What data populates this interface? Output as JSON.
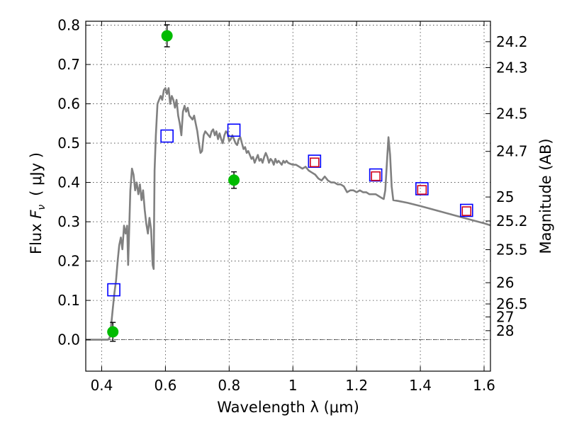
{
  "chart_data": {
    "type": "line",
    "xlabel": "Wavelength  λ (μm)",
    "ylabel": "Flux  Fν  ( μJy )",
    "ylabel_parts": {
      "pre": "Flux ",
      "var": "F",
      "sub": "ν",
      "unit": "( μJy )"
    },
    "y2label": "Magnitude (AB)",
    "xlim": [
      0.35,
      1.62
    ],
    "ylim": [
      -0.08,
      0.81
    ],
    "grid": true,
    "xticks": [
      {
        "value": 0.4,
        "label": "0.4"
      },
      {
        "value": 0.6,
        "label": "0.6"
      },
      {
        "value": 0.8,
        "label": "0.8"
      },
      {
        "value": 1.0,
        "label": "1"
      },
      {
        "value": 1.2,
        "label": "1.2"
      },
      {
        "value": 1.4,
        "label": "1.4"
      },
      {
        "value": 1.6,
        "label": "1.6"
      }
    ],
    "yticks": [
      {
        "value": 0.0,
        "label": "0.0"
      },
      {
        "value": 0.1,
        "label": "0.1"
      },
      {
        "value": 0.2,
        "label": "0.2"
      },
      {
        "value": 0.3,
        "label": "0.3"
      },
      {
        "value": 0.4,
        "label": "0.4"
      },
      {
        "value": 0.5,
        "label": "0.5"
      },
      {
        "value": 0.6,
        "label": "0.6"
      },
      {
        "value": 0.7,
        "label": "0.7"
      },
      {
        "value": 0.8,
        "label": "0.8"
      }
    ],
    "y2ticks": [
      {
        "label": "24.2",
        "flux": 0.758
      },
      {
        "label": "24.3",
        "flux": 0.692
      },
      {
        "label": "24.5",
        "flux": 0.575
      },
      {
        "label": "24.7",
        "flux": 0.479
      },
      {
        "label": "25",
        "flux": 0.363
      },
      {
        "label": "25.2",
        "flux": 0.302
      },
      {
        "label": "25.5",
        "flux": 0.229
      },
      {
        "label": "26",
        "flux": 0.145
      },
      {
        "label": "26.5",
        "flux": 0.091
      },
      {
        "label": "27",
        "flux": 0.058
      },
      {
        "label": "28",
        "flux": 0.023
      }
    ],
    "model_spectrum": {
      "color": "#808080",
      "points": [
        [
          0.35,
          0.0
        ],
        [
          0.42,
          0.0
        ],
        [
          0.425,
          0.005
        ],
        [
          0.43,
          0.04
        ],
        [
          0.435,
          0.08
        ],
        [
          0.44,
          0.12
        ],
        [
          0.445,
          0.15
        ],
        [
          0.45,
          0.2
        ],
        [
          0.455,
          0.24
        ],
        [
          0.46,
          0.26
        ],
        [
          0.465,
          0.23
        ],
        [
          0.47,
          0.29
        ],
        [
          0.475,
          0.27
        ],
        [
          0.48,
          0.29
        ],
        [
          0.483,
          0.19
        ],
        [
          0.487,
          0.3
        ],
        [
          0.49,
          0.38
        ],
        [
          0.495,
          0.435
        ],
        [
          0.5,
          0.42
        ],
        [
          0.505,
          0.38
        ],
        [
          0.51,
          0.4
        ],
        [
          0.515,
          0.37
        ],
        [
          0.52,
          0.395
        ],
        [
          0.525,
          0.355
        ],
        [
          0.53,
          0.38
        ],
        [
          0.535,
          0.33
        ],
        [
          0.54,
          0.295
        ],
        [
          0.545,
          0.27
        ],
        [
          0.55,
          0.31
        ],
        [
          0.555,
          0.28
        ],
        [
          0.56,
          0.19
        ],
        [
          0.563,
          0.18
        ],
        [
          0.566,
          0.43
        ],
        [
          0.57,
          0.52
        ],
        [
          0.575,
          0.6
        ],
        [
          0.58,
          0.61
        ],
        [
          0.585,
          0.62
        ],
        [
          0.59,
          0.61
        ],
        [
          0.595,
          0.635
        ],
        [
          0.6,
          0.64
        ],
        [
          0.605,
          0.625
        ],
        [
          0.61,
          0.64
        ],
        [
          0.615,
          0.6
        ],
        [
          0.62,
          0.62
        ],
        [
          0.625,
          0.61
        ],
        [
          0.63,
          0.59
        ],
        [
          0.635,
          0.61
        ],
        [
          0.64,
          0.57
        ],
        [
          0.645,
          0.55
        ],
        [
          0.65,
          0.52
        ],
        [
          0.655,
          0.58
        ],
        [
          0.66,
          0.595
        ],
        [
          0.665,
          0.58
        ],
        [
          0.67,
          0.59
        ],
        [
          0.675,
          0.57
        ],
        [
          0.68,
          0.565
        ],
        [
          0.685,
          0.56
        ],
        [
          0.69,
          0.57
        ],
        [
          0.695,
          0.55
        ],
        [
          0.7,
          0.53
        ],
        [
          0.705,
          0.5
        ],
        [
          0.71,
          0.475
        ],
        [
          0.715,
          0.48
        ],
        [
          0.72,
          0.52
        ],
        [
          0.725,
          0.53
        ],
        [
          0.73,
          0.525
        ],
        [
          0.735,
          0.52
        ],
        [
          0.74,
          0.515
        ],
        [
          0.745,
          0.53
        ],
        [
          0.75,
          0.535
        ],
        [
          0.755,
          0.52
        ],
        [
          0.76,
          0.53
        ],
        [
          0.765,
          0.51
        ],
        [
          0.77,
          0.525
        ],
        [
          0.775,
          0.51
        ],
        [
          0.78,
          0.5
        ],
        [
          0.785,
          0.52
        ],
        [
          0.79,
          0.53
        ],
        [
          0.795,
          0.525
        ],
        [
          0.8,
          0.505
        ],
        [
          0.805,
          0.51
        ],
        [
          0.81,
          0.52
        ],
        [
          0.815,
          0.51
        ],
        [
          0.82,
          0.5
        ],
        [
          0.825,
          0.495
        ],
        [
          0.83,
          0.51
        ],
        [
          0.835,
          0.515
        ],
        [
          0.84,
          0.5
        ],
        [
          0.845,
          0.485
        ],
        [
          0.85,
          0.49
        ],
        [
          0.855,
          0.475
        ],
        [
          0.86,
          0.48
        ],
        [
          0.865,
          0.47
        ],
        [
          0.87,
          0.46
        ],
        [
          0.875,
          0.465
        ],
        [
          0.88,
          0.45
        ],
        [
          0.885,
          0.46
        ],
        [
          0.89,
          0.47
        ],
        [
          0.895,
          0.455
        ],
        [
          0.9,
          0.46
        ],
        [
          0.905,
          0.45
        ],
        [
          0.91,
          0.465
        ],
        [
          0.915,
          0.475
        ],
        [
          0.92,
          0.465
        ],
        [
          0.925,
          0.45
        ],
        [
          0.93,
          0.46
        ],
        [
          0.935,
          0.455
        ],
        [
          0.94,
          0.445
        ],
        [
          0.945,
          0.46
        ],
        [
          0.95,
          0.45
        ],
        [
          0.955,
          0.455
        ],
        [
          0.96,
          0.45
        ],
        [
          0.965,
          0.445
        ],
        [
          0.97,
          0.455
        ],
        [
          0.975,
          0.45
        ],
        [
          0.98,
          0.455
        ],
        [
          0.985,
          0.45
        ],
        [
          0.99,
          0.448
        ],
        [
          1.0,
          0.445
        ],
        [
          1.01,
          0.445
        ],
        [
          1.02,
          0.44
        ],
        [
          1.03,
          0.435
        ],
        [
          1.04,
          0.44
        ],
        [
          1.05,
          0.43
        ],
        [
          1.06,
          0.425
        ],
        [
          1.07,
          0.42
        ],
        [
          1.08,
          0.41
        ],
        [
          1.09,
          0.405
        ],
        [
          1.1,
          0.415
        ],
        [
          1.11,
          0.405
        ],
        [
          1.12,
          0.4
        ],
        [
          1.13,
          0.4
        ],
        [
          1.14,
          0.395
        ],
        [
          1.15,
          0.395
        ],
        [
          1.16,
          0.39
        ],
        [
          1.17,
          0.375
        ],
        [
          1.18,
          0.38
        ],
        [
          1.19,
          0.38
        ],
        [
          1.2,
          0.375
        ],
        [
          1.21,
          0.38
        ],
        [
          1.22,
          0.375
        ],
        [
          1.23,
          0.375
        ],
        [
          1.24,
          0.37
        ],
        [
          1.25,
          0.37
        ],
        [
          1.26,
          0.37
        ],
        [
          1.27,
          0.365
        ],
        [
          1.28,
          0.36
        ],
        [
          1.285,
          0.358
        ],
        [
          1.29,
          0.38
        ],
        [
          1.295,
          0.45
        ],
        [
          1.3,
          0.515
        ],
        [
          1.305,
          0.47
        ],
        [
          1.31,
          0.39
        ],
        [
          1.315,
          0.355
        ],
        [
          1.33,
          0.353
        ],
        [
          1.36,
          0.348
        ],
        [
          1.4,
          0.34
        ],
        [
          1.45,
          0.329
        ],
        [
          1.5,
          0.318
        ],
        [
          1.55,
          0.307
        ],
        [
          1.6,
          0.296
        ],
        [
          1.62,
          0.291
        ]
      ]
    },
    "series": [
      {
        "marker": "square",
        "edge_color": "#0000ff",
        "points": [
          {
            "x": 0.438,
            "y": 0.127
          },
          {
            "x": 0.605,
            "y": 0.518
          },
          {
            "x": 0.815,
            "y": 0.533
          },
          {
            "x": 1.068,
            "y": 0.454
          },
          {
            "x": 1.26,
            "y": 0.419
          },
          {
            "x": 1.405,
            "y": 0.384
          },
          {
            "x": 1.545,
            "y": 0.329
          }
        ]
      },
      {
        "marker": "square",
        "edge_color": "#d0021b",
        "points": [
          {
            "x": 1.068,
            "y": 0.451
          },
          {
            "x": 1.26,
            "y": 0.416
          },
          {
            "x": 1.405,
            "y": 0.381
          },
          {
            "x": 1.545,
            "y": 0.327
          }
        ]
      },
      {
        "marker": "circle",
        "color": "#00bb00",
        "error_color": "#000000",
        "points": [
          {
            "x": 0.435,
            "y": 0.02,
            "err": 0.024
          },
          {
            "x": 0.605,
            "y": 0.773,
            "err": 0.028
          },
          {
            "x": 0.815,
            "y": 0.406,
            "err": 0.021
          }
        ]
      }
    ]
  }
}
